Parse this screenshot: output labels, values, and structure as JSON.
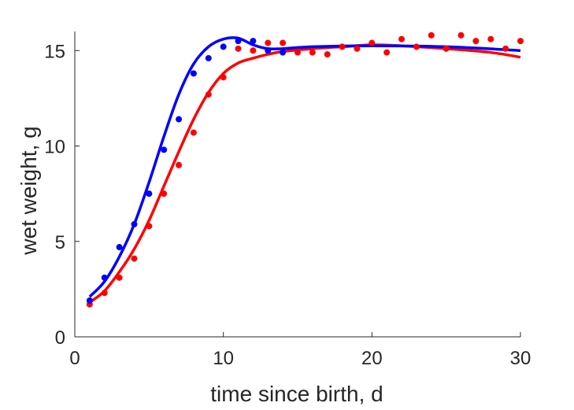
{
  "chart_data": {
    "type": "scatter",
    "title": "",
    "xlabel": "time since birth, d",
    "ylabel": "wet weight, g",
    "xlim": [
      0,
      30
    ],
    "ylim": [
      0,
      16
    ],
    "xticks": [
      0,
      10,
      20,
      30
    ],
    "yticks": [
      0,
      5,
      10,
      15
    ],
    "grid": false,
    "legend": "none",
    "series": [
      {
        "color": "#0000ff",
        "points": {
          "x": [
            1,
            2,
            3,
            4,
            5,
            6,
            7,
            8,
            9,
            10,
            11,
            12,
            13,
            14
          ],
          "y": [
            1.9,
            3.1,
            4.7,
            5.9,
            7.5,
            9.8,
            11.4,
            13.8,
            14.6,
            15.2,
            15.5,
            15.5,
            15.0,
            14.9
          ]
        },
        "fit": {
          "x": [
            1,
            2,
            3,
            4,
            5,
            6,
            7,
            8,
            9,
            10,
            11,
            12,
            13,
            14,
            16,
            20,
            25,
            30
          ],
          "y": [
            2.1,
            2.9,
            4.2,
            5.9,
            8.1,
            10.5,
            12.7,
            14.3,
            15.2,
            15.6,
            15.65,
            15.3,
            15.1,
            15.1,
            15.2,
            15.25,
            15.2,
            15.0
          ]
        }
      },
      {
        "color": "#ff0000",
        "points": {
          "x": [
            1,
            2,
            3,
            4,
            5,
            6,
            7,
            8,
            9,
            10,
            11,
            12,
            13,
            14,
            15,
            16,
            17,
            18,
            19,
            20,
            21,
            22,
            23,
            24,
            25,
            26,
            27,
            28,
            29,
            30
          ],
          "y": [
            1.7,
            2.3,
            3.1,
            4.1,
            5.8,
            7.5,
            9.0,
            10.7,
            12.7,
            13.6,
            15.1,
            15.0,
            15.4,
            15.4,
            14.9,
            14.9,
            14.8,
            15.2,
            15.1,
            15.4,
            14.9,
            15.6,
            15.2,
            15.8,
            15.1,
            15.8,
            15.5,
            15.6,
            15.1,
            15.5
          ]
        },
        "fit": {
          "x": [
            1,
            2,
            3,
            4,
            5,
            6,
            7,
            8,
            9,
            10,
            11,
            12,
            13,
            14,
            16,
            18,
            20,
            22,
            25,
            28,
            30
          ],
          "y": [
            1.8,
            2.4,
            3.4,
            4.6,
            6.1,
            7.9,
            9.7,
            11.4,
            12.8,
            13.8,
            14.35,
            14.6,
            14.8,
            14.95,
            15.1,
            15.2,
            15.3,
            15.25,
            15.1,
            14.9,
            14.65
          ]
        }
      }
    ]
  }
}
